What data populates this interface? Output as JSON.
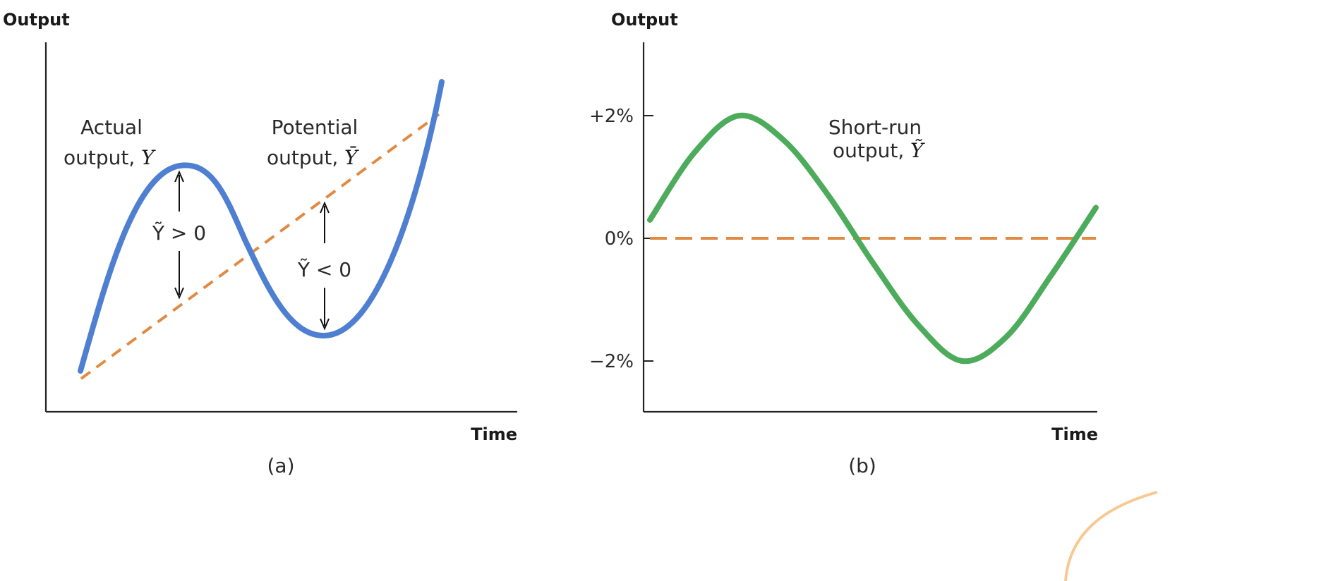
{
  "chart_data": [
    {
      "type": "line",
      "panel_label": "(a)",
      "ylabel": "Output",
      "xlabel": "Time",
      "series": [
        {
          "name": "Actual output, Y",
          "style": "solid",
          "color": "#4f7fd0",
          "label_parts": {
            "text": "Actual",
            "text2": "output, ",
            "symbol": "Y"
          }
        },
        {
          "name": "Potential output, Ȳ",
          "style": "dashed",
          "color": "#e08a44",
          "label_parts": {
            "text": "Potential",
            "text2": "output, ",
            "symbol": "Ȳ"
          }
        }
      ],
      "annotations": [
        {
          "text": "Ỹ > 0",
          "gap": "actual above potential"
        },
        {
          "text": "Ỹ < 0",
          "gap": "actual below potential"
        }
      ]
    },
    {
      "type": "line",
      "panel_label": "(b)",
      "ylabel": "Output",
      "xlabel": "Time",
      "ytick_labels": [
        "+2%",
        "0%",
        "−2%"
      ],
      "yticks": [
        2,
        0,
        -2
      ],
      "ylim": [
        -3,
        4.8
      ],
      "series": [
        {
          "name": "Short-run output, Ỹ",
          "style": "solid",
          "color": "#4dab5c",
          "label_parts": {
            "text": "Short-run",
            "text2": "output, ",
            "symbol": "Ỹ"
          },
          "amplitude": 2,
          "x": [
            0,
            0.5,
            1,
            1.5,
            2,
            2.5,
            3,
            3.5,
            4,
            4.5,
            5
          ],
          "y": [
            0.3,
            1.4,
            2.0,
            1.6,
            0.7,
            -0.4,
            -1.4,
            -2.0,
            -1.6,
            -0.6,
            0.5
          ]
        },
        {
          "name": "Baseline 0%",
          "style": "dashed",
          "color": "#e08a44",
          "x": [
            0,
            5
          ],
          "y": [
            0,
            0
          ]
        }
      ]
    }
  ]
}
